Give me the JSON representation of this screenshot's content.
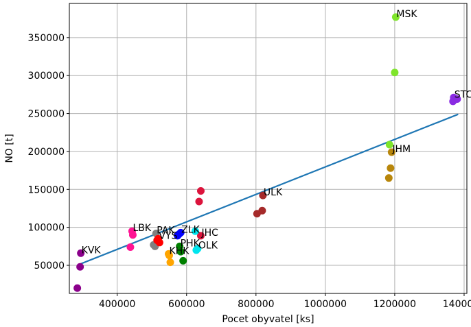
{
  "chart_data": {
    "type": "scatter",
    "xlabel": "Pocet obyvatel [ks]",
    "ylabel": "NO [t]",
    "xlim": [
      262000,
      1408000
    ],
    "ylim": [
      13000,
      395000
    ],
    "xticks": [
      400000,
      600000,
      800000,
      1000000,
      1200000,
      1400000
    ],
    "xtick_labels": [
      "400000",
      "600000",
      "800000",
      "1000000",
      "1200000",
      "1400000"
    ],
    "yticks": [
      50000,
      100000,
      150000,
      200000,
      250000,
      300000,
      350000
    ],
    "ytick_labels": [
      "50000",
      "100000",
      "150000",
      "200000",
      "250000",
      "300000",
      "350000"
    ],
    "grid": true,
    "trend_line": {
      "color": "#1f77b4",
      "x": [
        295000,
        1383000
      ],
      "y": [
        52000,
        249000
      ]
    },
    "points": [
      {
        "x": 1203000,
        "y": 377000,
        "color": "#7fe52b"
      },
      {
        "x": 1200000,
        "y": 304000,
        "color": "#7fe52b"
      },
      {
        "x": 1185000,
        "y": 209000,
        "color": "#7fe52b"
      },
      {
        "x": 1370000,
        "y": 271000,
        "color": "#8a2be2"
      },
      {
        "x": 1368000,
        "y": 266000,
        "color": "#8a2be2"
      },
      {
        "x": 1380000,
        "y": 269000,
        "color": "#8a2be2"
      },
      {
        "x": 1191000,
        "y": 199000,
        "color": "#b8860b"
      },
      {
        "x": 1188000,
        "y": 178000,
        "color": "#b8860b"
      },
      {
        "x": 1183000,
        "y": 165000,
        "color": "#b8860b"
      },
      {
        "x": 820000,
        "y": 142000,
        "color": "#a52a2a"
      },
      {
        "x": 818000,
        "y": 122000,
        "color": "#a52a2a"
      },
      {
        "x": 803000,
        "y": 118000,
        "color": "#a52a2a"
      },
      {
        "x": 641000,
        "y": 148000,
        "color": "#dc143c"
      },
      {
        "x": 636000,
        "y": 134000,
        "color": "#dc143c"
      },
      {
        "x": 641000,
        "y": 89000,
        "color": "#dc143c"
      },
      {
        "x": 443000,
        "y": 95000,
        "color": "#ff1493"
      },
      {
        "x": 445000,
        "y": 90000,
        "color": "#ff1493"
      },
      {
        "x": 438000,
        "y": 74000,
        "color": "#ff1493"
      },
      {
        "x": 512000,
        "y": 92000,
        "color": "#808080"
      },
      {
        "x": 505000,
        "y": 77000,
        "color": "#808080"
      },
      {
        "x": 509000,
        "y": 75000,
        "color": "#808080"
      },
      {
        "x": 518000,
        "y": 85000,
        "color": "#ff0000"
      },
      {
        "x": 522000,
        "y": 80000,
        "color": "#ff0000"
      },
      {
        "x": 515000,
        "y": 83000,
        "color": "#ff0000"
      },
      {
        "x": 578000,
        "y": 91000,
        "color": "#0000ff"
      },
      {
        "x": 574000,
        "y": 89000,
        "color": "#0000ff"
      },
      {
        "x": 583000,
        "y": 93000,
        "color": "#0000ff"
      },
      {
        "x": 625000,
        "y": 95000,
        "color": "#00e5ee"
      },
      {
        "x": 632000,
        "y": 72000,
        "color": "#00e5ee"
      },
      {
        "x": 628000,
        "y": 70000,
        "color": "#00e5ee"
      },
      {
        "x": 580000,
        "y": 75000,
        "color": "#008000"
      },
      {
        "x": 583000,
        "y": 68000,
        "color": "#008000"
      },
      {
        "x": 590000,
        "y": 56000,
        "color": "#008000"
      },
      {
        "x": 548000,
        "y": 65000,
        "color": "#ffa500"
      },
      {
        "x": 553000,
        "y": 54000,
        "color": "#ffa500"
      },
      {
        "x": 550000,
        "y": 63000,
        "color": "#ffa500"
      },
      {
        "x": 295000,
        "y": 66000,
        "color": "#8b008b"
      },
      {
        "x": 293000,
        "y": 48000,
        "color": "#8b008b"
      },
      {
        "x": 285000,
        "y": 20000,
        "color": "#8b008b"
      }
    ],
    "annotations": [
      {
        "text": "MSK",
        "x": 1203000,
        "y": 377000
      },
      {
        "text": "STC",
        "x": 1370000,
        "y": 271000
      },
      {
        "text": "JHM",
        "x": 1191000,
        "y": 199000
      },
      {
        "text": "ULK",
        "x": 820000,
        "y": 142000
      },
      {
        "text": "LBK",
        "x": 443000,
        "y": 95000
      },
      {
        "text": "PAK",
        "x": 512000,
        "y": 92000
      },
      {
        "text": "ZLK",
        "x": 583000,
        "y": 93000
      },
      {
        "text": "VYS",
        "x": 518000,
        "y": 85000
      },
      {
        "text": "KHK",
        "x": 548000,
        "y": 65000
      },
      {
        "text": "PHK",
        "x": 580000,
        "y": 75000
      },
      {
        "text": "OLK",
        "x": 632000,
        "y": 72000
      },
      {
        "text": "JHC",
        "x": 641000,
        "y": 89000
      },
      {
        "text": "KVK",
        "x": 295000,
        "y": 66000
      }
    ]
  }
}
